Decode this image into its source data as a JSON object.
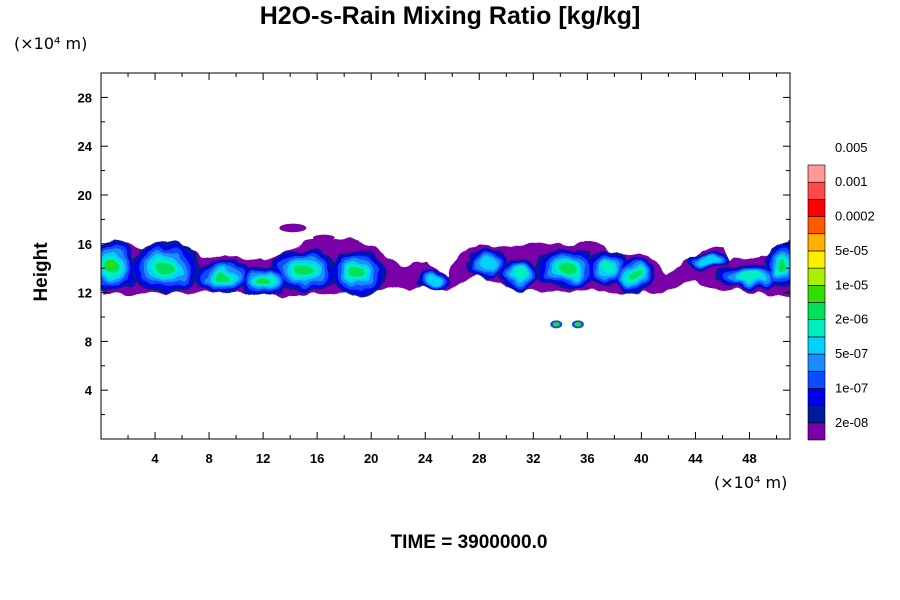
{
  "chart_data": {
    "type": "heatmap",
    "title": "H2O-s-Rain Mixing Ratio [kg/kg]",
    "ylabel": "Height",
    "xlabel": "",
    "x_unit": "(×10⁴ m)",
    "y_unit": "(×10⁴ m)",
    "xlim": [
      0,
      51
    ],
    "ylim": [
      0,
      30
    ],
    "x_ticks": [
      4,
      8,
      12,
      16,
      20,
      24,
      28,
      32,
      36,
      40,
      44,
      48
    ],
    "y_ticks": [
      4,
      8,
      12,
      16,
      20,
      24,
      28
    ],
    "colorbar": {
      "colors": [
        "#7a00a8",
        "#001a99",
        "#0000ee",
        "#0a4cff",
        "#1a8cff",
        "#00d2ff",
        "#00eec0",
        "#00e05a",
        "#33dd00",
        "#aaee00",
        "#ffee00",
        "#ffb000",
        "#ff5a00",
        "#ff0000",
        "#ff4a4a",
        "#ff9999"
      ],
      "labels": [
        "2e-08",
        "1e-07",
        "5e-07",
        "2e-06",
        "1e-05",
        "5e-05",
        "0.0002",
        "0.001",
        "0.005"
      ]
    },
    "cloud_layer": {
      "base_height": 12,
      "top_height": 16,
      "x_range": [
        0,
        51
      ],
      "isolated_patches_x": [
        33.7,
        35.3
      ],
      "isolated_patches_height": 9.4
    }
  },
  "footer": {
    "time_label": "TIME = 3900000.0"
  }
}
